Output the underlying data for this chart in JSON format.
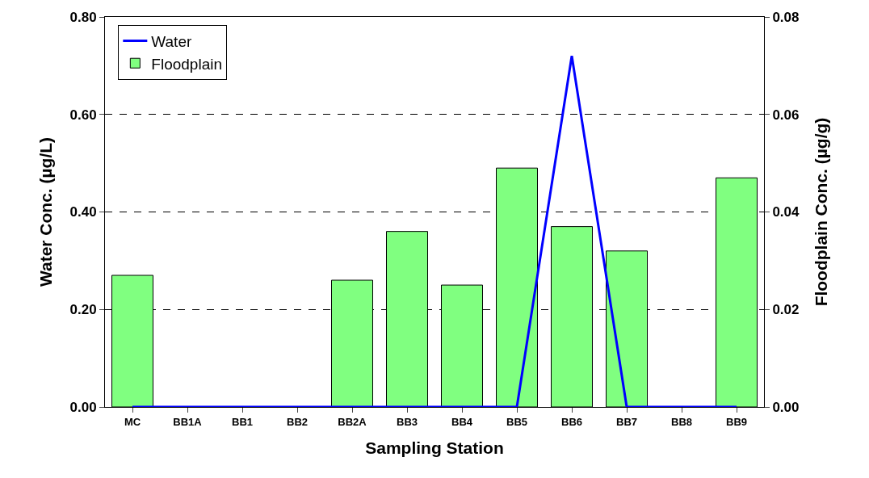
{
  "chart_data": {
    "type": "bar",
    "xlabel": "Sampling Station",
    "ylabel": "Water Conc. (µg/L)",
    "y2label": "Floodplain Conc. (µg/g)",
    "categories": [
      "MC",
      "BB1A",
      "BB1",
      "BB2",
      "BB2A",
      "BB3",
      "BB4",
      "BB5",
      "BB6",
      "BB7",
      "BB8",
      "BB9"
    ],
    "series": [
      {
        "name": "Water",
        "type": "line",
        "color": "#0000ff",
        "values": [
          0,
          0,
          0,
          0,
          0,
          0,
          0,
          0,
          0.72,
          0,
          0,
          0
        ]
      },
      {
        "name": "Floodplain",
        "axis": "y2",
        "color": "#80ff80",
        "values": [
          0.027,
          null,
          null,
          null,
          0.026,
          0.036,
          0.025,
          0.049,
          0.037,
          0.032,
          null,
          0.047
        ]
      }
    ],
    "ylim": [
      0,
      0.8
    ],
    "yticks": [
      {
        "value": 0,
        "label": "0.00"
      },
      {
        "value": 0.2,
        "label": "0.20"
      },
      {
        "value": 0.4,
        "label": "0.40"
      },
      {
        "value": 0.6,
        "label": "0.60"
      },
      {
        "value": 0.8,
        "label": "0.80"
      }
    ],
    "y2lim": [
      0,
      0.08
    ],
    "y2ticks": [
      {
        "value": 0,
        "label": "0.00"
      },
      {
        "value": 0.02,
        "label": "0.02"
      },
      {
        "value": 0.04,
        "label": "0.04"
      },
      {
        "value": 0.06,
        "label": "0.06"
      },
      {
        "value": 0.08,
        "label": "0.08"
      }
    ],
    "grid": "y",
    "legend": "top left",
    "marker": "none",
    "line_style": "solid"
  }
}
